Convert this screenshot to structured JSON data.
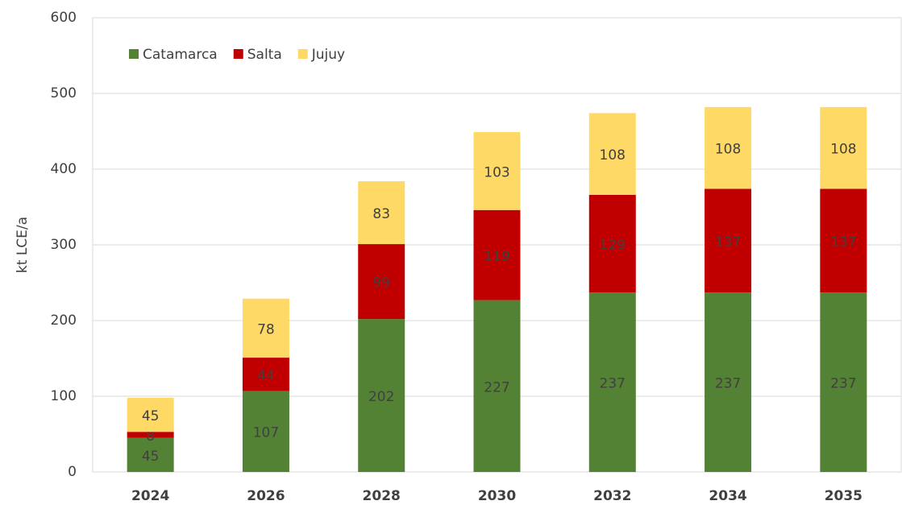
{
  "chart_data": {
    "type": "bar",
    "stacked": true,
    "y_label": "kt LCE/a",
    "categories": [
      "2024",
      "2026",
      "2028",
      "2030",
      "2032",
      "2034",
      "2035"
    ],
    "series": [
      {
        "name": "Catamarca",
        "color": "#548235",
        "values": [
          45,
          107,
          202,
          227,
          237,
          237,
          237
        ]
      },
      {
        "name": "Salta",
        "color": "#c00000",
        "values": [
          8,
          44,
          99,
          119,
          129,
          137,
          137
        ]
      },
      {
        "name": "Jujuy",
        "color": "#ffd966",
        "values": [
          45,
          78,
          83,
          103,
          108,
          108,
          108
        ]
      }
    ],
    "ylim": [
      0,
      600
    ],
    "yticks": [
      0,
      100,
      200,
      300,
      400,
      500,
      600
    ],
    "grid": true,
    "legend": "top-left"
  }
}
